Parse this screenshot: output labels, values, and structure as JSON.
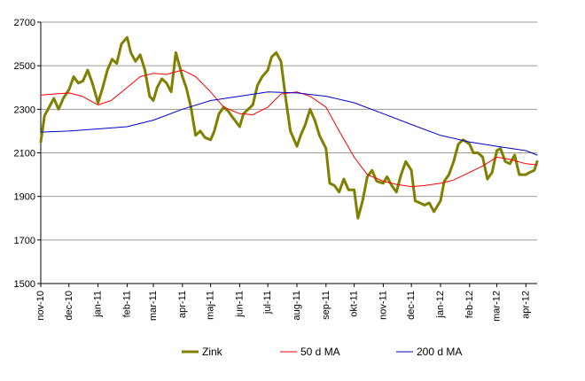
{
  "chart_data": {
    "type": "line",
    "title": "",
    "xlabel": "",
    "ylabel": "",
    "ylim": [
      1500,
      2700
    ],
    "yticks": [
      1500,
      1700,
      1900,
      2100,
      2300,
      2500,
      2700
    ],
    "xlim": [
      "2010-11-01",
      "2012-04-13"
    ],
    "xtick_labels": [
      "nov-10",
      "dec-10",
      "jan-11",
      "feb-11",
      "mar-11",
      "apr-11",
      "maj-11",
      "jun-11",
      "jul-11",
      "aug-11",
      "sep-11",
      "okt-11",
      "nov-11",
      "dec-11",
      "jan-12",
      "feb-12",
      "mar-12",
      "apr-12"
    ],
    "xtick_dates": [
      "2010-11-01",
      "2010-12-01",
      "2011-01-01",
      "2011-02-01",
      "2011-03-01",
      "2011-04-01",
      "2011-05-01",
      "2011-06-01",
      "2011-07-01",
      "2011-08-01",
      "2011-09-01",
      "2011-10-01",
      "2011-11-01",
      "2011-12-01",
      "2012-01-01",
      "2012-02-01",
      "2012-03-01",
      "2012-04-01"
    ],
    "grid": true,
    "legend_position": "bottom",
    "series": [
      {
        "name": "Zink",
        "color": "#808000",
        "x": [
          "2010-11-01",
          "2010-11-05",
          "2010-11-10",
          "2010-11-15",
          "2010-11-20",
          "2010-11-25",
          "2010-12-01",
          "2010-12-06",
          "2010-12-11",
          "2010-12-16",
          "2010-12-21",
          "2010-12-26",
          "2011-01-01",
          "2011-01-06",
          "2011-01-11",
          "2011-01-16",
          "2011-01-21",
          "2011-01-26",
          "2011-02-01",
          "2011-02-05",
          "2011-02-10",
          "2011-02-15",
          "2011-02-20",
          "2011-02-25",
          "2011-03-01",
          "2011-03-05",
          "2011-03-10",
          "2011-03-15",
          "2011-03-20",
          "2011-03-25",
          "2011-04-01",
          "2011-04-05",
          "2011-04-10",
          "2011-04-15",
          "2011-04-20",
          "2011-04-25",
          "2011-05-01",
          "2011-05-05",
          "2011-05-10",
          "2011-05-15",
          "2011-05-20",
          "2011-05-25",
          "2011-06-01",
          "2011-06-05",
          "2011-06-10",
          "2011-06-15",
          "2011-06-20",
          "2011-06-25",
          "2011-07-01",
          "2011-07-05",
          "2011-07-10",
          "2011-07-15",
          "2011-07-20",
          "2011-07-25",
          "2011-08-01",
          "2011-08-05",
          "2011-08-10",
          "2011-08-15",
          "2011-08-20",
          "2011-08-25",
          "2011-09-01",
          "2011-09-05",
          "2011-09-10",
          "2011-09-15",
          "2011-09-20",
          "2011-09-25",
          "2011-10-01",
          "2011-10-05",
          "2011-10-10",
          "2011-10-15",
          "2011-10-20",
          "2011-10-25",
          "2011-11-01",
          "2011-11-05",
          "2011-11-10",
          "2011-11-15",
          "2011-11-20",
          "2011-11-25",
          "2011-12-01",
          "2011-12-05",
          "2011-12-10",
          "2011-12-15",
          "2011-12-20",
          "2011-12-25",
          "2012-01-01",
          "2012-01-05",
          "2012-01-10",
          "2012-01-15",
          "2012-01-20",
          "2012-01-25",
          "2012-02-01",
          "2012-02-05",
          "2012-02-10",
          "2012-02-15",
          "2012-02-20",
          "2012-02-25",
          "2012-03-01",
          "2012-03-05",
          "2012-03-10",
          "2012-03-15",
          "2012-03-20",
          "2012-03-25",
          "2012-04-01",
          "2012-04-05",
          "2012-04-10",
          "2012-04-13"
        ],
        "values": [
          2150,
          2270,
          2310,
          2350,
          2300,
          2350,
          2390,
          2450,
          2420,
          2430,
          2480,
          2420,
          2330,
          2400,
          2480,
          2530,
          2510,
          2600,
          2630,
          2560,
          2520,
          2550,
          2480,
          2360,
          2340,
          2400,
          2440,
          2420,
          2380,
          2560,
          2450,
          2400,
          2310,
          2180,
          2200,
          2170,
          2160,
          2200,
          2280,
          2310,
          2290,
          2260,
          2220,
          2280,
          2300,
          2320,
          2410,
          2450,
          2480,
          2540,
          2560,
          2520,
          2350,
          2200,
          2130,
          2180,
          2230,
          2300,
          2250,
          2180,
          2120,
          1960,
          1950,
          1920,
          1980,
          1930,
          1930,
          1800,
          1880,
          1990,
          2020,
          1970,
          1960,
          1990,
          1950,
          1920,
          2000,
          2060,
          2020,
          1880,
          1870,
          1860,
          1870,
          1830,
          1880,
          1970,
          2000,
          2060,
          2140,
          2160,
          2140,
          2100,
          2100,
          2080,
          1980,
          2010,
          2110,
          2120,
          2060,
          2050,
          2090,
          2000,
          2000,
          2010,
          2020,
          2060
        ]
      },
      {
        "name": "50 d MA",
        "color": "#ff0000",
        "x": [
          "2010-11-01",
          "2010-11-15",
          "2010-12-01",
          "2010-12-15",
          "2011-01-01",
          "2011-01-15",
          "2011-02-01",
          "2011-02-15",
          "2011-03-01",
          "2011-03-15",
          "2011-04-01",
          "2011-04-15",
          "2011-05-01",
          "2011-05-15",
          "2011-06-01",
          "2011-06-15",
          "2011-07-01",
          "2011-07-15",
          "2011-08-01",
          "2011-08-15",
          "2011-09-01",
          "2011-09-15",
          "2011-10-01",
          "2011-10-15",
          "2011-11-01",
          "2011-11-15",
          "2011-12-01",
          "2011-12-15",
          "2012-01-01",
          "2012-01-15",
          "2012-02-01",
          "2012-02-15",
          "2012-03-01",
          "2012-03-15",
          "2012-04-01",
          "2012-04-13"
        ],
        "values": [
          2365,
          2370,
          2375,
          2360,
          2320,
          2340,
          2400,
          2450,
          2465,
          2460,
          2480,
          2450,
          2380,
          2310,
          2280,
          2275,
          2310,
          2370,
          2380,
          2360,
          2310,
          2200,
          2080,
          2000,
          1970,
          1955,
          1945,
          1950,
          1960,
          1975,
          2010,
          2040,
          2080,
          2070,
          2050,
          2045
        ]
      },
      {
        "name": "200 d MA",
        "color": "#0000cc",
        "x": [
          "2010-11-01",
          "2010-12-01",
          "2011-01-01",
          "2011-02-01",
          "2011-03-01",
          "2011-04-01",
          "2011-05-01",
          "2011-06-01",
          "2011-07-01",
          "2011-08-01",
          "2011-09-01",
          "2011-10-01",
          "2011-11-01",
          "2011-12-01",
          "2012-01-01",
          "2012-02-01",
          "2012-03-01",
          "2012-04-01",
          "2012-04-13"
        ],
        "values": [
          2195,
          2200,
          2210,
          2220,
          2250,
          2300,
          2340,
          2360,
          2380,
          2375,
          2360,
          2330,
          2280,
          2230,
          2180,
          2150,
          2130,
          2110,
          2090
        ]
      }
    ]
  }
}
